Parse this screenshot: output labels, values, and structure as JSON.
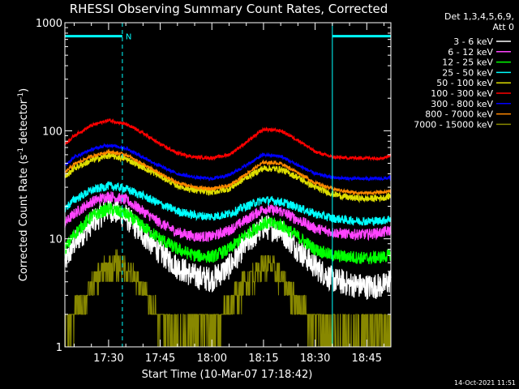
{
  "chart_data": {
    "type": "line",
    "title": "RHESSI Observing Summary Count Rates, Corrected",
    "xlabel": "Start Time (10-Mar-07 17:18:42)",
    "ylabel": "Corrected Count Rate (s⁻¹ detector⁻¹)",
    "ylabel_parts": {
      "a": "Corrected Count Rate (s",
      "b": "-1",
      "c": " detector",
      "d": "-1",
      "e": ")"
    },
    "y_scale": "log",
    "ylim": [
      1,
      1000
    ],
    "xlim_minutes": [
      17.3,
      64.3
    ],
    "x_ticks": [
      {
        "min": 30,
        "label": "17:30"
      },
      {
        "min": 45,
        "label": "17:45"
      },
      {
        "min": 60,
        "label": "18:00"
      },
      {
        "min": 75,
        "label": "18:15"
      },
      {
        "min": 90,
        "label": "18:30"
      },
      {
        "min": 105,
        "label": "18:45"
      }
    ],
    "y_ticks": [
      {
        "value": 1,
        "label": "1"
      },
      {
        "value": 10,
        "label": "10"
      },
      {
        "value": 100,
        "label": "100"
      },
      {
        "value": 1000,
        "label": "1000"
      }
    ],
    "legend": {
      "header": [
        "Det 1,3,4,5,6,9,",
        "Att 0"
      ],
      "placement": "right"
    },
    "series": [
      {
        "name": "3 - 6 keV",
        "color": "#ffffff",
        "x": [
          17.3,
          20,
          25,
          30,
          35,
          40,
          45,
          50,
          55,
          60,
          65,
          70,
          75,
          80,
          85,
          90,
          95,
          100,
          105,
          110,
          112
        ],
        "y": [
          6,
          9,
          14,
          19,
          16,
          11,
          7.5,
          5.5,
          4.5,
          4.2,
          5.5,
          9,
          13,
          12,
          8,
          5.5,
          4.2,
          3.8,
          3.6,
          3.7,
          4.2
        ]
      },
      {
        "name": "6 - 12 keV",
        "color": "#ff44ff",
        "x": [
          17.3,
          20,
          25,
          30,
          35,
          40,
          45,
          50,
          55,
          60,
          65,
          70,
          75,
          80,
          85,
          90,
          95,
          100,
          105,
          110,
          112
        ],
        "y": [
          14,
          17,
          22,
          25,
          23,
          18,
          14,
          11.5,
          10.5,
          10.5,
          12,
          15,
          19,
          18,
          15,
          12.5,
          11.5,
          11,
          11,
          11.5,
          12
        ]
      },
      {
        "name": "12 - 25 keV",
        "color": "#00ff00",
        "x": [
          17.3,
          20,
          25,
          30,
          35,
          40,
          45,
          50,
          55,
          60,
          65,
          70,
          75,
          80,
          85,
          90,
          95,
          100,
          105,
          110,
          112
        ],
        "y": [
          8,
          11,
          16,
          19,
          17,
          13,
          10,
          8,
          7,
          6.8,
          8,
          11,
          14,
          13.5,
          10.5,
          8,
          7,
          6.8,
          6.6,
          6.8,
          7.2
        ]
      },
      {
        "name": "25 - 50 keV",
        "color": "#00ffff",
        "x": [
          17.3,
          20,
          25,
          30,
          35,
          40,
          45,
          50,
          55,
          60,
          65,
          70,
          75,
          80,
          85,
          90,
          95,
          100,
          105,
          110,
          112
        ],
        "y": [
          19,
          23,
          28,
          31,
          29,
          25,
          21,
          18,
          16.5,
          16,
          17,
          20,
          23,
          22,
          19.5,
          17,
          15.5,
          14.8,
          14.5,
          14.8,
          15.5
        ]
      },
      {
        "name": "50 - 100 keV",
        "color": "#dddd00",
        "x": [
          17.3,
          20,
          25,
          30,
          35,
          40,
          45,
          50,
          55,
          60,
          65,
          70,
          75,
          80,
          85,
          90,
          95,
          100,
          105,
          110,
          112
        ],
        "y": [
          37,
          45,
          53,
          59,
          55,
          46,
          38,
          31,
          28,
          27,
          29,
          37,
          45,
          44,
          37,
          30,
          26,
          24,
          23.5,
          24,
          25
        ]
      },
      {
        "name": "100 - 300 keV",
        "color": "#ff0000",
        "x": [
          17.3,
          20,
          25,
          30,
          35,
          40,
          45,
          50,
          55,
          60,
          65,
          70,
          75,
          80,
          85,
          90,
          95,
          100,
          105,
          110,
          112
        ],
        "y": [
          75,
          90,
          112,
          125,
          115,
          95,
          75,
          62,
          57,
          56,
          60,
          78,
          103,
          100,
          82,
          64,
          57,
          56,
          56,
          56,
          60
        ]
      },
      {
        "name": "300 - 800 keV",
        "color": "#0000ff",
        "x": [
          17.3,
          20,
          25,
          30,
          35,
          40,
          45,
          50,
          55,
          60,
          65,
          70,
          75,
          80,
          85,
          90,
          95,
          100,
          105,
          110,
          112
        ],
        "y": [
          48,
          57,
          67,
          74,
          69,
          57,
          47,
          40,
          37,
          36,
          39,
          48,
          60,
          58,
          48,
          40,
          37,
          36,
          36,
          36,
          37
        ]
      },
      {
        "name": "800 - 7000 keV",
        "color": "#ff8800",
        "x": [
          17.3,
          20,
          25,
          30,
          35,
          40,
          45,
          50,
          55,
          60,
          65,
          70,
          75,
          80,
          85,
          90,
          95,
          100,
          105,
          110,
          112
        ],
        "y": [
          41,
          49,
          58,
          64,
          60,
          49,
          40,
          33,
          30,
          29,
          31,
          40,
          51,
          50,
          41,
          33,
          29,
          27,
          26.5,
          27,
          28
        ]
      },
      {
        "name": "7000 - 15000 keV",
        "color": "#888800",
        "x": [
          17.3,
          20,
          22,
          25,
          27,
          30,
          33,
          35,
          37,
          40,
          42,
          45,
          47,
          50,
          55,
          60,
          62,
          65,
          67,
          70,
          73,
          75,
          77,
          80,
          82,
          85,
          88,
          90,
          95,
          100,
          105,
          110,
          112
        ],
        "y": [
          1.5,
          2.0,
          2.5,
          3.5,
          4.5,
          5.5,
          6.0,
          5.5,
          4.5,
          3.5,
          2.5,
          2.0,
          1.6,
          1.4,
          1.5,
          1.6,
          1.8,
          2.3,
          3.0,
          4.0,
          5.0,
          6.0,
          5.5,
          4.5,
          3.5,
          2.5,
          2.0,
          1.6,
          1.4,
          1.3,
          1.4,
          1.6,
          1.5
        ]
      }
    ],
    "annotations": {
      "segment_lines": [
        {
          "min": 17.3,
          "style": "solid"
        },
        {
          "min": 34,
          "style": "dashed"
        },
        {
          "min": 95,
          "style": "solid"
        },
        {
          "min": 112,
          "style": "dashed"
        }
      ],
      "flag_bars": [
        {
          "from": 17.3,
          "to": 34,
          "y": 750,
          "label": "N"
        },
        {
          "from": 95,
          "to": 112,
          "y": 750,
          "label": ""
        }
      ],
      "flag_color": "#00ffff"
    },
    "footer_timestamp": "14-Oct-2021 11:51"
  }
}
